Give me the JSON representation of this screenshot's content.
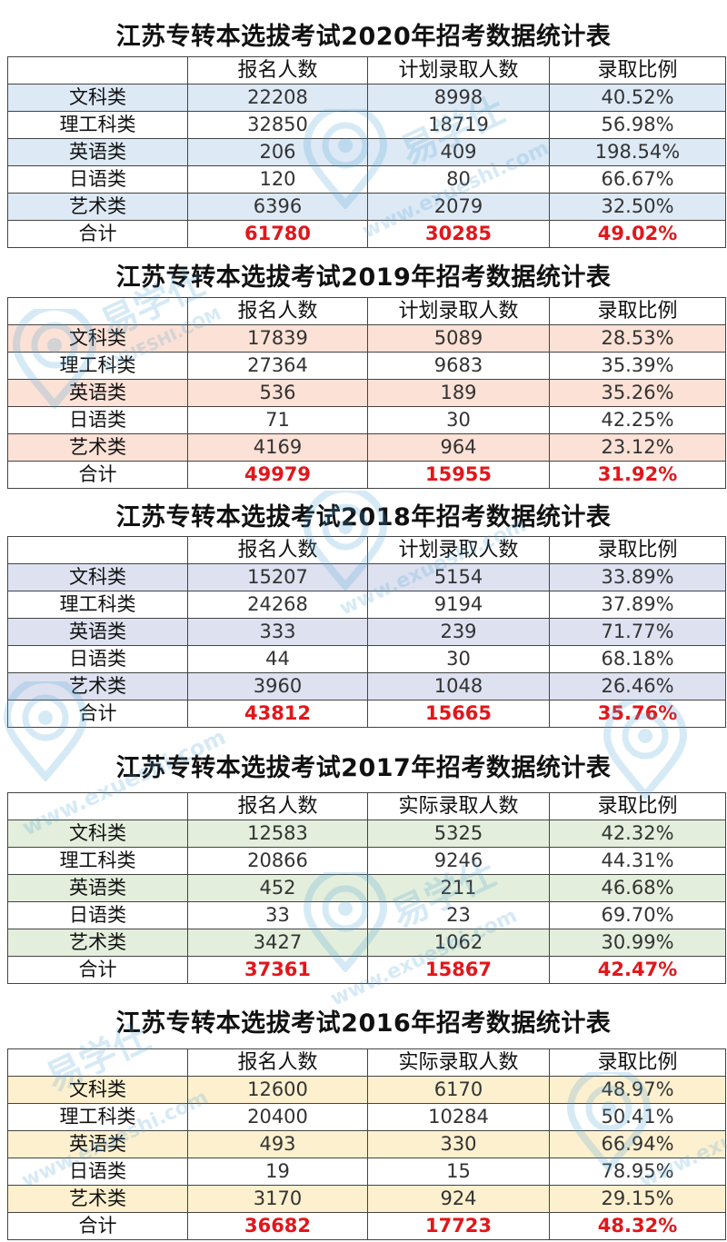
{
  "columns_plan": [
    "",
    "报名人数",
    "计划录取人数",
    "录取比例"
  ],
  "columns_actual": [
    "",
    "报名人数",
    "实际录取人数",
    "录取比例"
  ],
  "colors": {
    "2020": "#dde9f5",
    "2019": "#fbe1d6",
    "2018": "#dde1f0",
    "2017": "#e3eedc",
    "2016": "#fdf0cf",
    "total_red": "#e3161b"
  },
  "watermark": {
    "brand": "易学仕",
    "url": "www.exueshi.com",
    "short": "EXUESHI.COM",
    "reg": "®"
  },
  "tables": [
    {
      "title": "江苏专转本选拔考试2020年招考数据统计表",
      "header": [
        "",
        "报名人数",
        "计划录取人数",
        "录取比例"
      ],
      "rows": [
        [
          "文科类",
          "22208",
          "8998",
          "40.52%"
        ],
        [
          "理工科类",
          "32850",
          "18719",
          "56.98%"
        ],
        [
          "英语类",
          "206",
          "409",
          "198.54%"
        ],
        [
          "日语类",
          "120",
          "80",
          "66.67%"
        ],
        [
          "艺术类",
          "6396",
          "2079",
          "32.50%"
        ]
      ],
      "total": [
        "合计",
        "61780",
        "30285",
        "49.02%"
      ]
    },
    {
      "title": "江苏专转本选拔考试2019年招考数据统计表",
      "header": [
        "",
        "报名人数",
        "计划录取人数",
        "录取比例"
      ],
      "rows": [
        [
          "文科类",
          "17839",
          "5089",
          "28.53%"
        ],
        [
          "理工科类",
          "27364",
          "9683",
          "35.39%"
        ],
        [
          "英语类",
          "536",
          "189",
          "35.26%"
        ],
        [
          "日语类",
          "71",
          "30",
          "42.25%"
        ],
        [
          "艺术类",
          "4169",
          "964",
          "23.12%"
        ]
      ],
      "total": [
        "合计",
        "49979",
        "15955",
        "31.92%"
      ]
    },
    {
      "title": "江苏专转本选拔考试2018年招考数据统计表",
      "header": [
        "",
        "报名人数",
        "计划录取人数",
        "录取比例"
      ],
      "rows": [
        [
          "文科类",
          "15207",
          "5154",
          "33.89%"
        ],
        [
          "理工科类",
          "24268",
          "9194",
          "37.89%"
        ],
        [
          "英语类",
          "333",
          "239",
          "71.77%"
        ],
        [
          "日语类",
          "44",
          "30",
          "68.18%"
        ],
        [
          "艺术类",
          "3960",
          "1048",
          "26.46%"
        ]
      ],
      "total": [
        "合计",
        "43812",
        "15665",
        "35.76%"
      ]
    },
    {
      "title": "江苏专转本选拔考试2017年招考数据统计表",
      "header": [
        "",
        "报名人数",
        "实际录取人数",
        "录取比例"
      ],
      "rows": [
        [
          "文科类",
          "12583",
          "5325",
          "42.32%"
        ],
        [
          "理工科类",
          "20866",
          "9246",
          "44.31%"
        ],
        [
          "英语类",
          "452",
          "211",
          "46.68%"
        ],
        [
          "日语类",
          "33",
          "23",
          "69.70%"
        ],
        [
          "艺术类",
          "3427",
          "1062",
          "30.99%"
        ]
      ],
      "total": [
        "合计",
        "37361",
        "15867",
        "42.47%"
      ]
    },
    {
      "title": "江苏专转本选拔考试2016年招考数据统计表",
      "header": [
        "",
        "报名人数",
        "实际录取人数",
        "录取比例"
      ],
      "rows": [
        [
          "文科类",
          "12600",
          "6170",
          "48.97%"
        ],
        [
          "理工科类",
          "20400",
          "10284",
          "50.41%"
        ],
        [
          "英语类",
          "493",
          "330",
          "66.94%"
        ],
        [
          "日语类",
          "19",
          "15",
          "78.95%"
        ],
        [
          "艺术类",
          "3170",
          "924",
          "29.15%"
        ]
      ],
      "total": [
        "合计",
        "36682",
        "17723",
        "48.32%"
      ]
    }
  ]
}
